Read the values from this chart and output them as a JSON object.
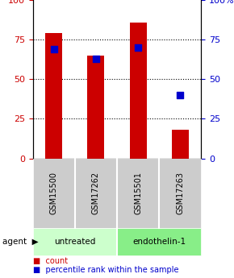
{
  "samples": [
    "GSM15500",
    "GSM17262",
    "GSM15501",
    "GSM17263"
  ],
  "groups": [
    "untreated",
    "untreated",
    "endothelin-1",
    "endothelin-1"
  ],
  "red_values": [
    79,
    65,
    86,
    18
  ],
  "blue_values": [
    69,
    63,
    70,
    40
  ],
  "red_color": "#cc0000",
  "blue_color": "#0000cc",
  "group_colors": {
    "untreated": "#ccffcc",
    "endothelin-1": "#88ee88"
  },
  "sample_box_color": "#cccccc",
  "ylim_left": [
    0,
    100
  ],
  "ylim_right": [
    0,
    100
  ],
  "yticks_left": [
    0,
    25,
    50,
    75,
    100
  ],
  "yticks_right": [
    0,
    25,
    50,
    75,
    100
  ],
  "ylabel_left_color": "#cc0000",
  "ylabel_right_color": "#0000cc",
  "grid_linestyle": "dotted",
  "bar_width": 0.4,
  "agent_label": "agent",
  "legend_items": [
    "count",
    "percentile rank within the sample"
  ],
  "background_color": "#ffffff",
  "figsize": [
    2.9,
    3.45
  ],
  "dpi": 100
}
